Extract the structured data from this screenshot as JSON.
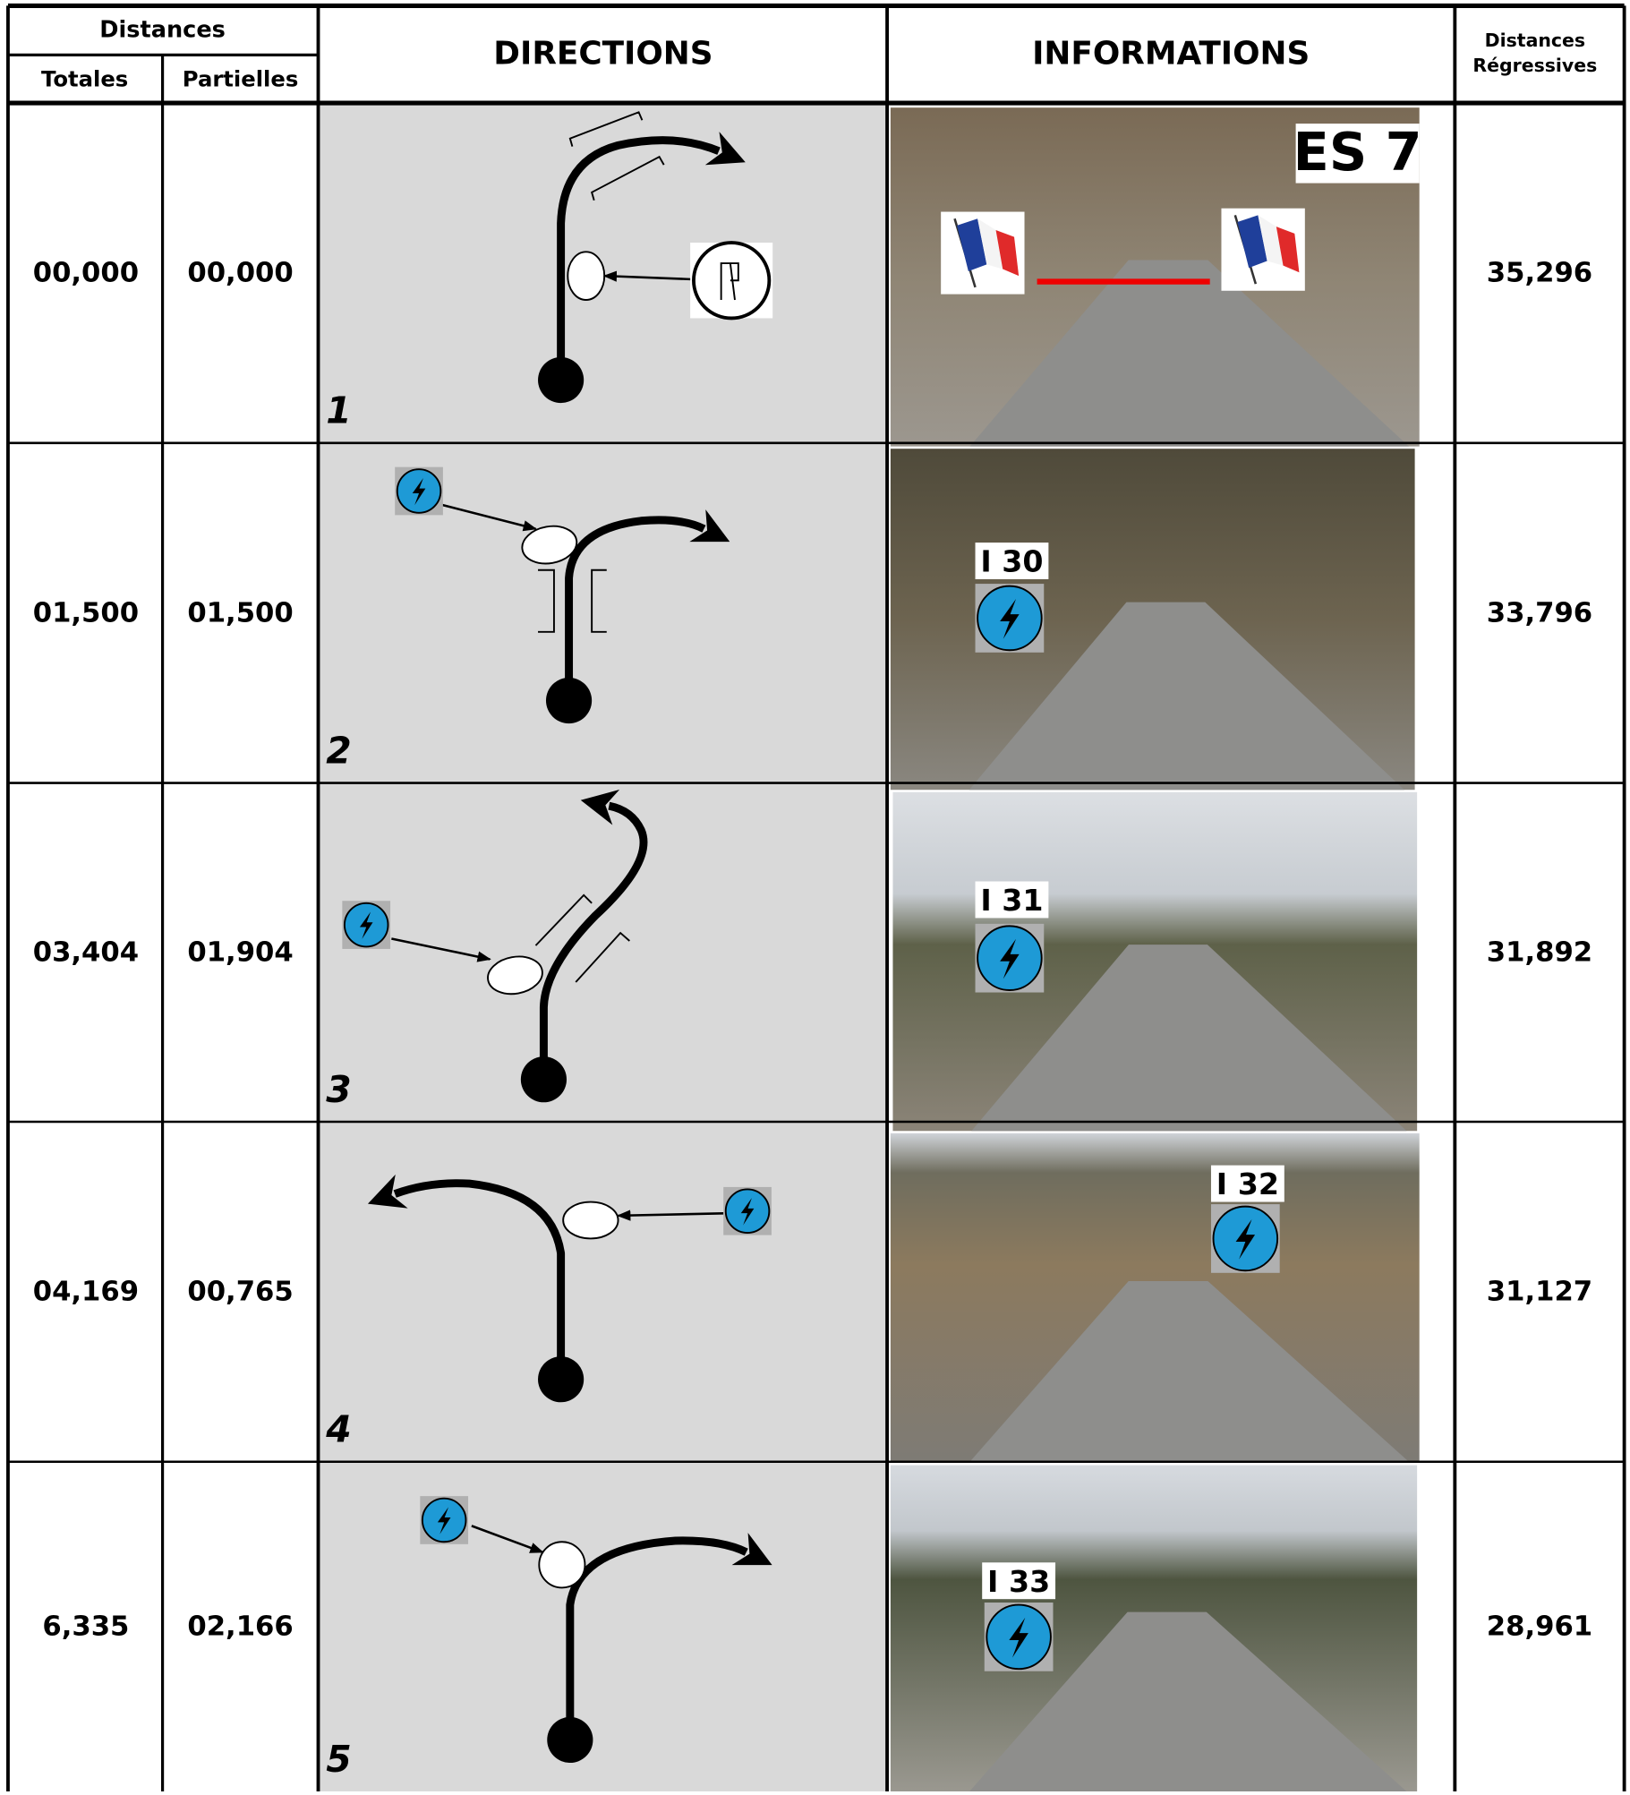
{
  "header": {
    "distances": "Distances",
    "totales": "Totales",
    "partielles": "Partielles",
    "directions": "DIRECTIONS",
    "informations": "INFORMATIONS",
    "regressives": [
      "Distances",
      "Régressives"
    ]
  },
  "rows": [
    {
      "number": "1",
      "total": "00,000",
      "partial": "00,000",
      "regressive": "35,296",
      "info_label": "ES 7"
    },
    {
      "number": "2",
      "total": "01,500",
      "partial": "01,500",
      "regressive": "33,796",
      "info_label": "I 30"
    },
    {
      "number": "3",
      "total": "03,404",
      "partial": "01,904",
      "regressive": "31,892",
      "info_label": "I 31"
    },
    {
      "number": "4",
      "total": "04,169",
      "partial": "00,765",
      "regressive": "31,127",
      "info_label": "I 32"
    },
    {
      "number": "5",
      "total": "6,335",
      "partial": "02,166",
      "regressive": "28,961",
      "info_label": "I 33"
    }
  ]
}
